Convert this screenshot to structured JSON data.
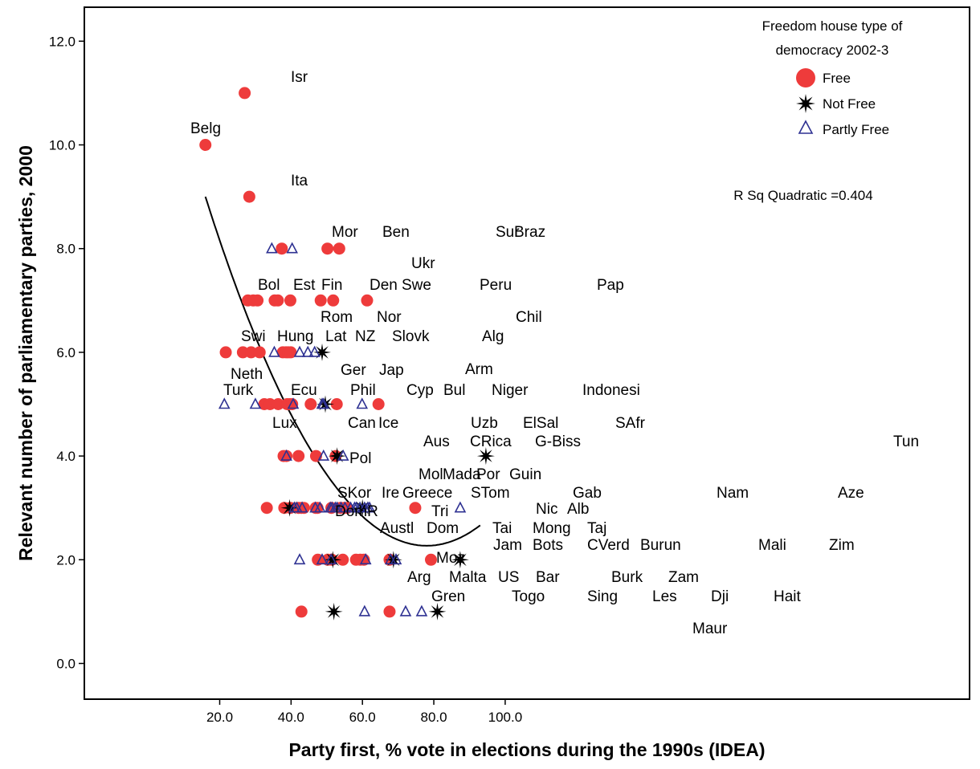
{
  "chart_data": {
    "type": "scatter",
    "xlabel": "Party first, % vote in elections during the 1990s (IDEA)",
    "ylabel": "Relevant number of parliamentary parties, 2000",
    "xlim": [
      5,
      105
    ],
    "ylim": [
      -1,
      13
    ],
    "x_ticks": [
      20,
      40,
      60,
      80,
      100
    ],
    "x_tick_labels": [
      "20.0",
      "40.0",
      "60.0",
      "80.0",
      "100.0"
    ],
    "y_ticks": [
      0,
      2,
      4,
      6,
      8,
      10,
      12
    ],
    "y_tick_labels": [
      "0.0",
      "2.0",
      "4.0",
      "6.0",
      "8.0",
      "10.0",
      "12.0"
    ],
    "grid": false,
    "legend": {
      "title_line1": "Freedom house type of",
      "title_line2": "democracy 2002-3",
      "placement": "top-right",
      "entries": [
        {
          "label": "Free",
          "marker": "circle",
          "color": "#ee3b3b"
        },
        {
          "label": "Not Free",
          "marker": "star",
          "color": "#000000"
        },
        {
          "label": "Partly Free",
          "marker": "triangle",
          "color": "#2e3192"
        }
      ]
    },
    "fit": {
      "label": "R Sq Quadratic =0.404",
      "type": "quadratic",
      "x_range": [
        16,
        93
      ],
      "y_range_endpoints": [
        9.0,
        2.7
      ],
      "vertex": [
        78,
        2.27
      ]
    },
    "series": [
      {
        "name": "Free",
        "points": [
          {
            "x": 16.0,
            "y": 10.0,
            "label": "Belg"
          },
          {
            "x": 27.0,
            "y": 11.0,
            "label": "Isr"
          },
          {
            "x": 28.3,
            "y": 9.0,
            "label": "Ita"
          },
          {
            "x": 37.4,
            "y": 8.0,
            "label": ""
          },
          {
            "x": 50.2,
            "y": 8.0,
            "label": ""
          },
          {
            "x": 53.5,
            "y": 8.0,
            "label": ""
          },
          {
            "x": 27.9,
            "y": 7.0,
            "label": ""
          },
          {
            "x": 29.4,
            "y": 7.0,
            "label": ""
          },
          {
            "x": 30.6,
            "y": 7.0,
            "label": ""
          },
          {
            "x": 35.4,
            "y": 7.0,
            "label": ""
          },
          {
            "x": 36.3,
            "y": 7.0,
            "label": ""
          },
          {
            "x": 39.8,
            "y": 7.0,
            "label": ""
          },
          {
            "x": 48.3,
            "y": 7.0,
            "label": ""
          },
          {
            "x": 51.8,
            "y": 7.0,
            "label": ""
          },
          {
            "x": 61.3,
            "y": 7.0,
            "label": ""
          },
          {
            "x": 21.7,
            "y": 6.0,
            "label": ""
          },
          {
            "x": 26.5,
            "y": 6.0,
            "label": ""
          },
          {
            "x": 28.8,
            "y": 6.0,
            "label": ""
          },
          {
            "x": 31.2,
            "y": 6.0,
            "label": ""
          },
          {
            "x": 37.7,
            "y": 6.0,
            "label": ""
          },
          {
            "x": 38.6,
            "y": 6.0,
            "label": ""
          },
          {
            "x": 39.2,
            "y": 6.0,
            "label": ""
          },
          {
            "x": 39.9,
            "y": 6.0,
            "label": ""
          },
          {
            "x": 32.5,
            "y": 5.0,
            "label": ""
          },
          {
            "x": 34.1,
            "y": 5.0,
            "label": ""
          },
          {
            "x": 36.4,
            "y": 5.0,
            "label": ""
          },
          {
            "x": 38.9,
            "y": 5.0,
            "label": ""
          },
          {
            "x": 39.6,
            "y": 5.0,
            "label": ""
          },
          {
            "x": 40.3,
            "y": 5.0,
            "label": ""
          },
          {
            "x": 45.5,
            "y": 5.0,
            "label": ""
          },
          {
            "x": 52.8,
            "y": 5.0,
            "label": ""
          },
          {
            "x": 64.5,
            "y": 5.0,
            "label": ""
          },
          {
            "x": 37.9,
            "y": 4.0,
            "label": ""
          },
          {
            "x": 38.7,
            "y": 4.0,
            "label": ""
          },
          {
            "x": 42.1,
            "y": 4.0,
            "label": ""
          },
          {
            "x": 47.0,
            "y": 4.0,
            "label": ""
          },
          {
            "x": 52.5,
            "y": 4.0,
            "label": ""
          },
          {
            "x": 33.2,
            "y": 3.0,
            "label": ""
          },
          {
            "x": 38.1,
            "y": 3.0,
            "label": ""
          },
          {
            "x": 39.8,
            "y": 3.0,
            "label": ""
          },
          {
            "x": 42.1,
            "y": 3.0,
            "label": ""
          },
          {
            "x": 42.9,
            "y": 3.0,
            "label": ""
          },
          {
            "x": 43.6,
            "y": 3.0,
            "label": ""
          },
          {
            "x": 46.9,
            "y": 3.0,
            "label": ""
          },
          {
            "x": 47.4,
            "y": 3.0,
            "label": ""
          },
          {
            "x": 51.3,
            "y": 3.0,
            "label": ""
          },
          {
            "x": 53.8,
            "y": 3.0,
            "label": ""
          },
          {
            "x": 54.9,
            "y": 3.0,
            "label": ""
          },
          {
            "x": 55.7,
            "y": 3.0,
            "label": ""
          },
          {
            "x": 74.8,
            "y": 3.0,
            "label": ""
          },
          {
            "x": 47.5,
            "y": 2.0,
            "label": ""
          },
          {
            "x": 50.3,
            "y": 2.0,
            "label": ""
          },
          {
            "x": 51.4,
            "y": 2.0,
            "label": ""
          },
          {
            "x": 54.5,
            "y": 2.0,
            "label": ""
          },
          {
            "x": 58.2,
            "y": 2.0,
            "label": ""
          },
          {
            "x": 59.4,
            "y": 2.0,
            "label": ""
          },
          {
            "x": 60.4,
            "y": 2.0,
            "label": ""
          },
          {
            "x": 67.6,
            "y": 2.0,
            "label": ""
          },
          {
            "x": 79.2,
            "y": 2.0,
            "label": ""
          },
          {
            "x": 42.9,
            "y": 1.0,
            "label": ""
          },
          {
            "x": 67.6,
            "y": 1.0,
            "label": ""
          }
        ]
      },
      {
        "name": "Not Free",
        "points": [
          {
            "x": 48.7,
            "y": 6.0,
            "label": ""
          },
          {
            "x": 49.6,
            "y": 5.0,
            "label": ""
          },
          {
            "x": 52.9,
            "y": 4.0,
            "label": ""
          },
          {
            "x": 94.6,
            "y": 4.0,
            "label": ""
          },
          {
            "x": 39.6,
            "y": 3.0,
            "label": ""
          },
          {
            "x": 60.0,
            "y": 3.0,
            "label": ""
          },
          {
            "x": 51.7,
            "y": 2.0,
            "label": ""
          },
          {
            "x": 68.7,
            "y": 2.0,
            "label": ""
          },
          {
            "x": 87.4,
            "y": 2.0,
            "label": ""
          },
          {
            "x": 52.0,
            "y": 1.0,
            "label": ""
          },
          {
            "x": 81.0,
            "y": 1.0,
            "label": ""
          }
        ]
      },
      {
        "name": "Partly Free",
        "points": [
          {
            "x": 34.6,
            "y": 8.0,
            "label": ""
          },
          {
            "x": 40.3,
            "y": 8.0,
            "label": ""
          },
          {
            "x": 35.3,
            "y": 6.0,
            "label": ""
          },
          {
            "x": 42.4,
            "y": 6.0,
            "label": ""
          },
          {
            "x": 44.7,
            "y": 6.0,
            "label": ""
          },
          {
            "x": 46.6,
            "y": 6.0,
            "label": ""
          },
          {
            "x": 21.3,
            "y": 5.0,
            "label": ""
          },
          {
            "x": 30.0,
            "y": 5.0,
            "label": ""
          },
          {
            "x": 40.6,
            "y": 5.0,
            "label": ""
          },
          {
            "x": 48.7,
            "y": 5.0,
            "label": ""
          },
          {
            "x": 49.1,
            "y": 5.0,
            "label": ""
          },
          {
            "x": 59.9,
            "y": 5.0,
            "label": ""
          },
          {
            "x": 38.7,
            "y": 4.0,
            "label": ""
          },
          {
            "x": 49.1,
            "y": 4.0,
            "label": ""
          },
          {
            "x": 54.6,
            "y": 4.0,
            "label": ""
          },
          {
            "x": 40.9,
            "y": 3.0,
            "label": ""
          },
          {
            "x": 41.6,
            "y": 3.0,
            "label": ""
          },
          {
            "x": 43.1,
            "y": 3.0,
            "label": ""
          },
          {
            "x": 46.8,
            "y": 3.0,
            "label": ""
          },
          {
            "x": 48.1,
            "y": 3.0,
            "label": ""
          },
          {
            "x": 51.0,
            "y": 3.0,
            "label": ""
          },
          {
            "x": 51.5,
            "y": 3.0,
            "label": ""
          },
          {
            "x": 52.4,
            "y": 3.0,
            "label": ""
          },
          {
            "x": 52.9,
            "y": 3.0,
            "label": ""
          },
          {
            "x": 54.0,
            "y": 3.0,
            "label": ""
          },
          {
            "x": 55.1,
            "y": 3.0,
            "label": ""
          },
          {
            "x": 56.7,
            "y": 3.0,
            "label": ""
          },
          {
            "x": 57.8,
            "y": 3.0,
            "label": ""
          },
          {
            "x": 58.3,
            "y": 3.0,
            "label": ""
          },
          {
            "x": 59.3,
            "y": 3.0,
            "label": ""
          },
          {
            "x": 60.6,
            "y": 3.0,
            "label": ""
          },
          {
            "x": 61.5,
            "y": 3.0,
            "label": ""
          },
          {
            "x": 62.0,
            "y": 3.0,
            "label": ""
          },
          {
            "x": 87.4,
            "y": 3.0,
            "label": ""
          },
          {
            "x": 42.4,
            "y": 2.0,
            "label": ""
          },
          {
            "x": 48.7,
            "y": 2.0,
            "label": ""
          },
          {
            "x": 51.2,
            "y": 2.0,
            "label": ""
          },
          {
            "x": 60.9,
            "y": 2.0,
            "label": ""
          },
          {
            "x": 67.9,
            "y": 2.0,
            "label": ""
          },
          {
            "x": 69.4,
            "y": 2.0,
            "label": ""
          },
          {
            "x": 60.6,
            "y": 1.0,
            "label": ""
          },
          {
            "x": 72.1,
            "y": 1.0,
            "label": ""
          },
          {
            "x": 76.6,
            "y": 1.0,
            "label": ""
          }
        ]
      }
    ],
    "annotations": [
      "Belg",
      "Isr",
      "Ita",
      "Mor",
      "Ben",
      "Sur",
      "Braz",
      "Ukr",
      "Bol",
      "Est",
      "Fin",
      "Den",
      "Swe",
      "Peru",
      "Pap",
      "Rom",
      "Nor",
      "Chil",
      "Swi",
      "Hung",
      "Lat",
      "NZ",
      "Slovk",
      "Alg",
      "Neth",
      "Ger",
      "Jap",
      "Arm",
      "Turk",
      "Ecu",
      "Phil",
      "Cyp",
      "Bul",
      "Niger",
      "Indonesi",
      "Lux",
      "Can",
      "Ice",
      "Uzb",
      "ElSal",
      "SAfr",
      "Aus",
      "CRica",
      "G-Biss",
      "Tun",
      "Pol",
      "Mol",
      "Mada",
      "Por",
      "Guin",
      "SKor",
      "Ire",
      "Greece",
      "STom",
      "Gab",
      "Nam",
      "Aze",
      "DomR",
      "Tri",
      "Nic",
      "Alb",
      "Austl",
      "Dom",
      "Tai",
      "Mong",
      "Taj",
      "Jam",
      "Bots",
      "CVerd",
      "Burun",
      "Mali",
      "Zim",
      "Moz",
      "Arg",
      "Malta",
      "US",
      "Bar",
      "Burk",
      "Zam",
      "Gren",
      "Togo",
      "Sing",
      "Les",
      "Dji",
      "Hait",
      "Maur"
    ]
  }
}
